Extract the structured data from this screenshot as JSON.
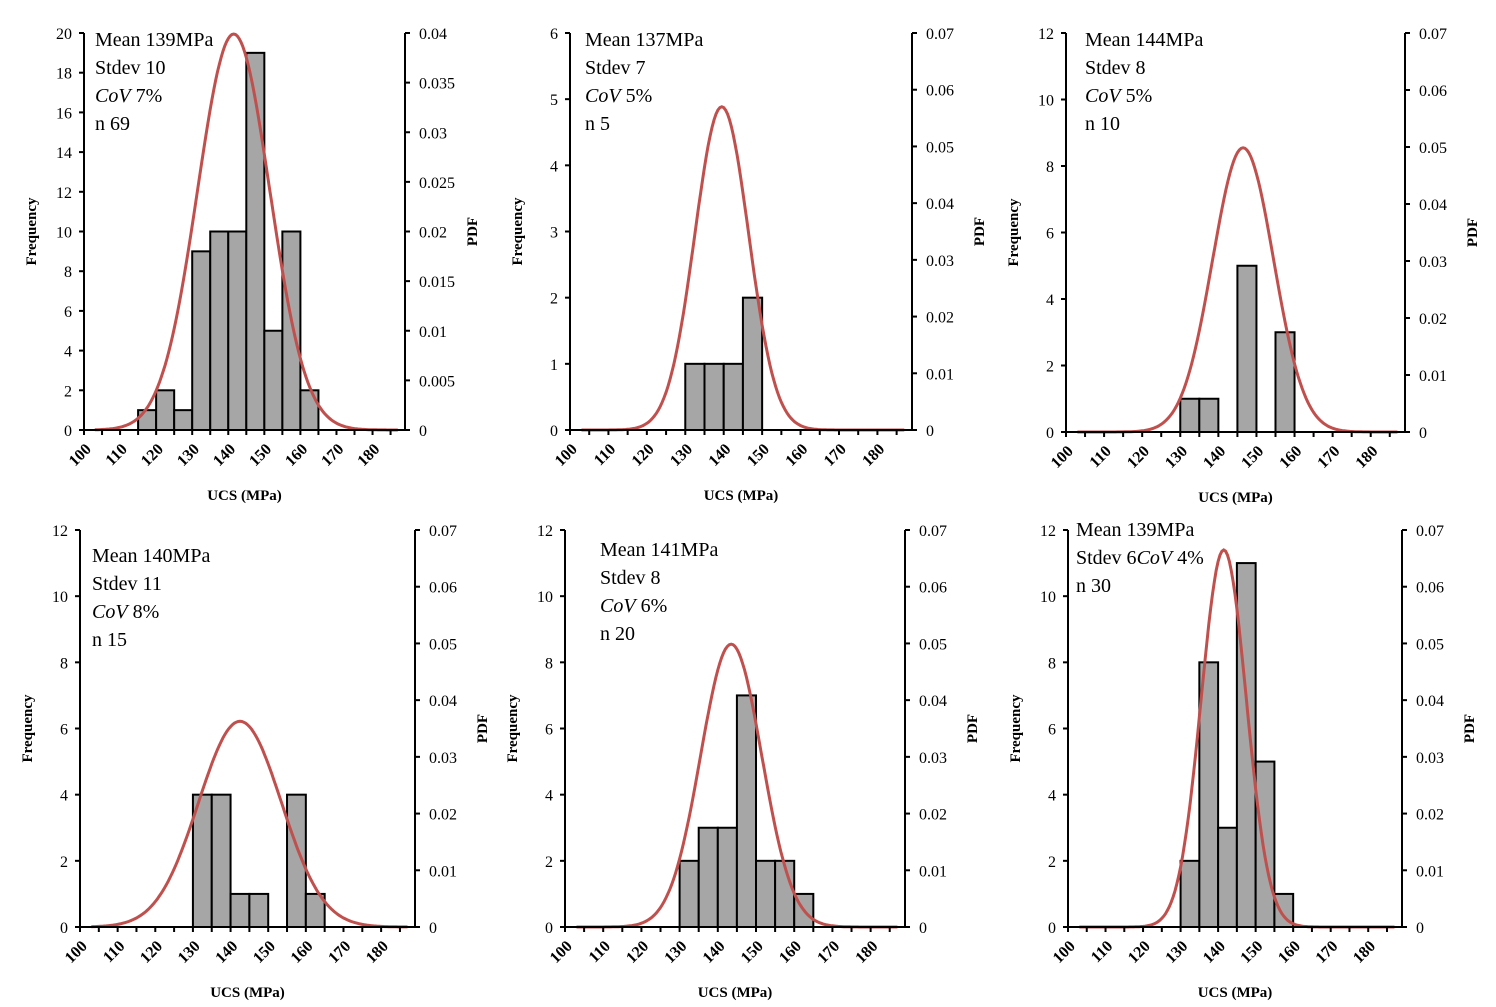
{
  "chart_data": [
    {
      "type": "bar",
      "xlabel": "UCS (MPa)",
      "ylabel": "Frequency",
      "y2label": "PDF",
      "xlim": [
        100,
        189
      ],
      "xticks": [
        "100",
        "110",
        "120",
        "130",
        "140",
        "150",
        "160",
        "170",
        "180"
      ],
      "ylim": [
        0,
        20
      ],
      "yticks": [
        "0",
        "2",
        "4",
        "6",
        "8",
        "10",
        "12",
        "14",
        "16",
        "18",
        "20"
      ],
      "y2lim": [
        0,
        0.04
      ],
      "y2ticks": [
        "0",
        "0.005",
        "0.01",
        "0.015",
        "0.02",
        "0.025",
        "0.03",
        "0.035",
        "0.04"
      ],
      "bins": [
        [
          115,
          120,
          1
        ],
        [
          120,
          125,
          2
        ],
        [
          125,
          130,
          1
        ],
        [
          130,
          135,
          9
        ],
        [
          135,
          140,
          10
        ],
        [
          140,
          145,
          10
        ],
        [
          145,
          150,
          19
        ],
        [
          150,
          155,
          5
        ],
        [
          155,
          160,
          10
        ],
        [
          160,
          165,
          2
        ]
      ],
      "pdf_curve": {
        "mean": 139,
        "stdev": 10,
        "color": "#c0504d"
      },
      "stats": [
        [
          {
            "t": "Mean 139MPa"
          }
        ],
        [
          {
            "t": "Stdev 10"
          }
        ],
        [
          {
            "t": "CoV",
            "i": true
          },
          {
            "t": " 7%"
          }
        ],
        [
          {
            "t": "n 69"
          }
        ]
      ],
      "bar_color": "#a6a6a6"
    },
    {
      "type": "bar",
      "xlabel": "UCS (MPa)",
      "ylabel": "Frequency",
      "y2label": "PDF",
      "xlim": [
        100,
        189
      ],
      "xticks": [
        "100",
        "110",
        "120",
        "130",
        "140",
        "150",
        "160",
        "170",
        "180"
      ],
      "ylim": [
        0,
        6
      ],
      "yticks": [
        "0",
        "1",
        "2",
        "3",
        "4",
        "5",
        "6"
      ],
      "y2lim": [
        0,
        0.07
      ],
      "y2ticks": [
        "0",
        "0.01",
        "0.02",
        "0.03",
        "0.04",
        "0.05",
        "0.06",
        "0.07"
      ],
      "bins": [
        [
          130,
          135,
          1
        ],
        [
          135,
          140,
          1
        ],
        [
          140,
          145,
          1
        ],
        [
          145,
          150,
          2
        ]
      ],
      "pdf_curve": {
        "mean": 137,
        "stdev": 7,
        "color": "#c0504d"
      },
      "stats": [
        [
          {
            "t": "Mean 137MPa"
          }
        ],
        [
          {
            "t": "Stdev 7"
          }
        ],
        [
          {
            "t": "CoV",
            "i": true
          },
          {
            "t": " 5%"
          }
        ],
        [
          {
            "t": "n 5"
          }
        ]
      ],
      "bar_color": "#a6a6a6"
    },
    {
      "type": "bar",
      "xlabel": "UCS (MPa)",
      "ylabel": "Frequency",
      "y2label": "PDF",
      "xlim": [
        100,
        189
      ],
      "xticks": [
        "100",
        "110",
        "120",
        "130",
        "140",
        "150",
        "160",
        "170",
        "180"
      ],
      "ylim": [
        0,
        12
      ],
      "yticks": [
        "0",
        "2",
        "4",
        "6",
        "8",
        "10",
        "12"
      ],
      "y2lim": [
        0,
        0.07
      ],
      "y2ticks": [
        "0",
        "0.01",
        "0.02",
        "0.03",
        "0.04",
        "0.05",
        "0.06",
        "0.07"
      ],
      "bins": [
        [
          130,
          135,
          1
        ],
        [
          135,
          140,
          1
        ],
        [
          145,
          150,
          5
        ],
        [
          155,
          160,
          3
        ]
      ],
      "pdf_curve": {
        "mean": 144,
        "stdev": 8,
        "color": "#c0504d"
      },
      "stats": [
        [
          {
            "t": "Mean 144MPa"
          }
        ],
        [
          {
            "t": "Stdev 8"
          }
        ],
        [
          {
            "t": "CoV",
            "i": true
          },
          {
            "t": " 5%"
          }
        ],
        [
          {
            "t": "n 10"
          }
        ]
      ],
      "bar_color": "#a6a6a6"
    },
    {
      "type": "bar",
      "xlabel": "UCS (MPa)",
      "ylabel": "Frequency",
      "y2label": "PDF",
      "xlim": [
        100,
        189
      ],
      "xticks": [
        "100",
        "110",
        "120",
        "130",
        "140",
        "150",
        "160",
        "170",
        "180"
      ],
      "ylim": [
        0,
        12
      ],
      "yticks": [
        "0",
        "2",
        "4",
        "6",
        "8",
        "10",
        "12"
      ],
      "y2lim": [
        0,
        0.07
      ],
      "y2ticks": [
        "0",
        "0.01",
        "0.02",
        "0.03",
        "0.04",
        "0.05",
        "0.06",
        "0.07"
      ],
      "bins": [
        [
          130,
          135,
          4
        ],
        [
          135,
          140,
          4
        ],
        [
          140,
          145,
          1
        ],
        [
          145,
          150,
          1
        ],
        [
          155,
          160,
          4
        ],
        [
          160,
          165,
          1
        ]
      ],
      "pdf_curve": {
        "mean": 140,
        "stdev": 11,
        "color": "#c0504d"
      },
      "stats": [
        [
          {
            "t": "Mean 140MPa"
          }
        ],
        [
          {
            "t": "Stdev 11"
          }
        ],
        [
          {
            "t": "CoV",
            "i": true
          },
          {
            "t": " 8%"
          }
        ],
        [
          {
            "t": "n 15"
          }
        ]
      ],
      "bar_color": "#a6a6a6"
    },
    {
      "type": "bar",
      "xlabel": "UCS (MPa)",
      "ylabel": "Frequency",
      "y2label": "PDF",
      "xlim": [
        100,
        189
      ],
      "xticks": [
        "100",
        "110",
        "120",
        "130",
        "140",
        "150",
        "160",
        "170",
        "180"
      ],
      "ylim": [
        0,
        12
      ],
      "yticks": [
        "0",
        "2",
        "4",
        "6",
        "8",
        "10",
        "12"
      ],
      "y2lim": [
        0,
        0.07
      ],
      "y2ticks": [
        "0",
        "0.01",
        "0.02",
        "0.03",
        "0.04",
        "0.05",
        "0.06",
        "0.07"
      ],
      "bins": [
        [
          130,
          135,
          2
        ],
        [
          135,
          140,
          3
        ],
        [
          140,
          145,
          3
        ],
        [
          145,
          150,
          7
        ],
        [
          150,
          155,
          2
        ],
        [
          155,
          160,
          2
        ],
        [
          160,
          165,
          1
        ]
      ],
      "pdf_curve": {
        "mean": 141,
        "stdev": 8,
        "color": "#c0504d"
      },
      "stats": [
        [
          {
            "t": "Mean 141MPa"
          }
        ],
        [
          {
            "t": "Stdev 8"
          }
        ],
        [
          {
            "t": "CoV",
            "i": true
          },
          {
            "t": " 6%"
          }
        ],
        [
          {
            "t": "n 20"
          }
        ]
      ],
      "bar_color": "#a6a6a6"
    },
    {
      "type": "bar",
      "xlabel": "UCS (MPa)",
      "ylabel": "Frequency",
      "y2label": "PDF",
      "xlim": [
        100,
        189
      ],
      "xticks": [
        "100",
        "110",
        "120",
        "130",
        "140",
        "150",
        "160",
        "170",
        "180"
      ],
      "ylim": [
        0,
        12
      ],
      "yticks": [
        "0",
        "2",
        "4",
        "6",
        "8",
        "10",
        "12"
      ],
      "y2lim": [
        0,
        0.07
      ],
      "y2ticks": [
        "0",
        "0.01",
        "0.02",
        "0.03",
        "0.04",
        "0.05",
        "0.06",
        "0.07"
      ],
      "bins": [
        [
          130,
          135,
          2
        ],
        [
          135,
          140,
          8
        ],
        [
          140,
          145,
          3
        ],
        [
          145,
          150,
          11
        ],
        [
          150,
          155,
          5
        ],
        [
          155,
          160,
          1
        ]
      ],
      "pdf_curve": {
        "mean": 139,
        "stdev": 6,
        "color": "#c0504d"
      },
      "stats": [
        [
          {
            "t": "Mean 139MPa"
          }
        ],
        [
          {
            "t": "Stdev 6"
          },
          {
            "t": "CoV",
            "i": true
          },
          {
            "t": " 4%"
          }
        ],
        [
          {
            "t": "n 30"
          }
        ]
      ],
      "bar_color": "#a6a6a6"
    }
  ]
}
